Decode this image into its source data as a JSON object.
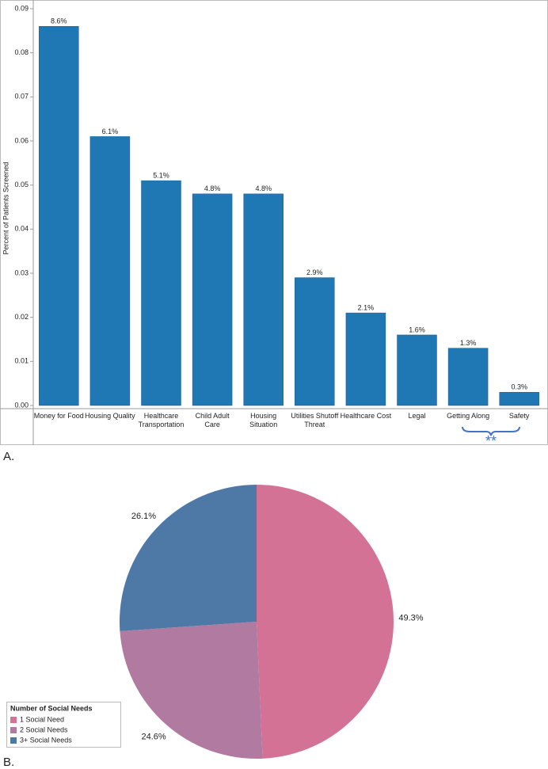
{
  "chart_data": [
    {
      "type": "bar",
      "panel": "A.",
      "ylabel": "Percent of Patients Screened",
      "categories": [
        "Money for Food",
        "Housing Quality",
        "Healthcare Transportation",
        "Child Adult Care",
        "Housing Situation",
        "Utilities Shutoff Threat",
        "Healthcare Cost",
        "Legal",
        "Getting Along",
        "Safety"
      ],
      "values": [
        0.086,
        0.061,
        0.051,
        0.048,
        0.048,
        0.029,
        0.021,
        0.016,
        0.013,
        0.003
      ],
      "value_labels": [
        "8.6%",
        "6.1%",
        "5.1%",
        "4.8%",
        "4.8%",
        "2.9%",
        "2.1%",
        "1.6%",
        "1.3%",
        "0.3%"
      ],
      "color": "#1f77b4",
      "ylim": [
        0,
        0.09
      ],
      "yticks": [
        {
          "value": 0,
          "label": "0.00"
        },
        {
          "value": 0.01,
          "label": "0.01"
        },
        {
          "value": 0.02,
          "label": "0.02"
        },
        {
          "value": 0.03,
          "label": "0.03"
        },
        {
          "value": 0.04,
          "label": "0.04"
        },
        {
          "value": 0.05,
          "label": "0.05"
        },
        {
          "value": 0.06,
          "label": "0.06"
        },
        {
          "value": 0.07,
          "label": "0.07"
        },
        {
          "value": 0.08,
          "label": "0.08"
        },
        {
          "value": 0.09,
          "label": "0.09"
        }
      ],
      "grid": false,
      "annotation": "**"
    },
    {
      "type": "pie",
      "panel": "B.",
      "legend_title": "Number of Social Needs",
      "legend": "bottom-left",
      "categories": [
        "1 Social Need",
        "2 Social Needs",
        "3+ Social Needs"
      ],
      "values": [
        49.3,
        24.6,
        26.1
      ],
      "value_labels": [
        "49.3%",
        "24.6%",
        "26.1%"
      ],
      "colors": [
        "#d47295",
        "#b07aa1",
        "#4e79a7"
      ]
    }
  ]
}
